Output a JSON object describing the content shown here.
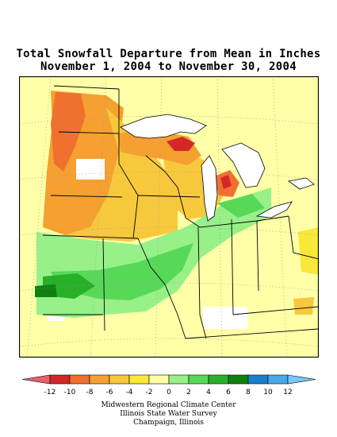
{
  "title": {
    "line1": "Total Snowfall Departure from Mean in Inches",
    "line2": "November 1, 2004 to November 30, 2004"
  },
  "legend": {
    "ticks": [
      "-12",
      "-10",
      "-8",
      "-6",
      "-4",
      "-2",
      "0",
      "2",
      "4",
      "6",
      "8",
      "10",
      "12"
    ],
    "colors": [
      "#e8606a",
      "#d42828",
      "#f07030",
      "#f5a030",
      "#f8c83c",
      "#f8e838",
      "#ffffa8",
      "#98f088",
      "#58d858",
      "#28b028",
      "#108010",
      "#1880c8",
      "#48a8e8",
      "#78c8f8"
    ]
  },
  "credits": {
    "line1": "Midwestern Regional Climate Center",
    "line2": "Illinois State Water Survey",
    "line3": "Champaign, Illinois"
  }
}
